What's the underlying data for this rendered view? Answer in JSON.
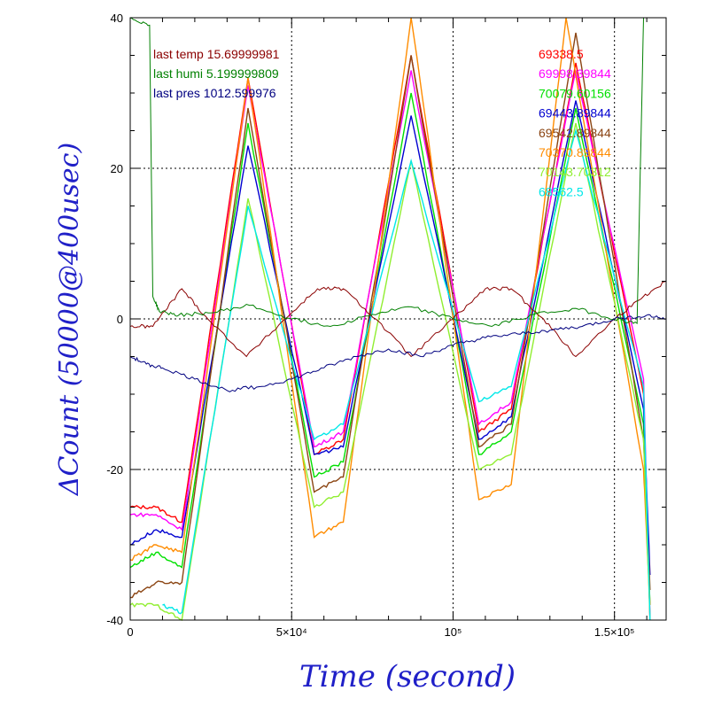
{
  "chart_data": {
    "type": "line",
    "xlabel": "Time (second)",
    "ylabel": "ΔCount (50000@400usec)",
    "xlim": [
      0,
      166000
    ],
    "ylim": [
      -40,
      40
    ],
    "grid": true,
    "x_ticks": [
      {
        "value": 0,
        "label": "0"
      },
      {
        "value": 50000,
        "label": "5×10⁴"
      },
      {
        "value": 100000,
        "label": "10⁵"
      },
      {
        "value": 150000,
        "label": "1.5×10⁵"
      }
    ],
    "y_ticks": [
      {
        "value": -40,
        "label": "-40"
      },
      {
        "value": -20,
        "label": "-20"
      },
      {
        "value": 0,
        "label": "0"
      },
      {
        "value": 20,
        "label": "20"
      },
      {
        "value": 40,
        "label": "40"
      }
    ],
    "annotations_left": [
      {
        "text": "last temp 15.69999981",
        "color": "#8b0000"
      },
      {
        "text": "last humi 5.199999809",
        "color": "#008000"
      },
      {
        "text": "last pres 1012.599976",
        "color": "#000080"
      }
    ],
    "series": [
      {
        "name": "69338.5",
        "color": "#ff0000",
        "points": [
          [
            0,
            -25
          ],
          [
            8000,
            -25
          ],
          [
            16000,
            -27
          ],
          [
            36500,
            32
          ],
          [
            57000,
            -18
          ],
          [
            66000,
            -16
          ],
          [
            87000,
            35
          ],
          [
            108000,
            -15
          ],
          [
            118000,
            -12
          ],
          [
            138000,
            34
          ],
          [
            159000,
            -10
          ],
          [
            161000,
            -40
          ]
        ]
      },
      {
        "name": "69998.39844",
        "color": "#ff00ff",
        "points": [
          [
            0,
            -26
          ],
          [
            8000,
            -26
          ],
          [
            16000,
            -28
          ],
          [
            36500,
            31
          ],
          [
            57000,
            -17
          ],
          [
            66000,
            -15
          ],
          [
            87000,
            33
          ],
          [
            108000,
            -14
          ],
          [
            118000,
            -11
          ],
          [
            138000,
            33
          ],
          [
            159000,
            -8
          ],
          [
            161000,
            -40
          ]
        ]
      },
      {
        "name": "70079.60156",
        "color": "#00e000",
        "points": [
          [
            0,
            -33
          ],
          [
            8000,
            -31
          ],
          [
            16000,
            -33
          ],
          [
            36500,
            26
          ],
          [
            57000,
            -21
          ],
          [
            66000,
            -19
          ],
          [
            87000,
            30
          ],
          [
            108000,
            -18
          ],
          [
            118000,
            -15
          ],
          [
            138000,
            28
          ],
          [
            159000,
            -14
          ],
          [
            161000,
            -38
          ]
        ]
      },
      {
        "name": "69443.89844",
        "color": "#0000d0",
        "points": [
          [
            0,
            -30
          ],
          [
            8000,
            -28
          ],
          [
            16000,
            -29
          ],
          [
            36500,
            23
          ],
          [
            57000,
            -18
          ],
          [
            66000,
            -17
          ],
          [
            87000,
            27
          ],
          [
            108000,
            -16
          ],
          [
            118000,
            -13
          ],
          [
            138000,
            29
          ],
          [
            159000,
            -12
          ],
          [
            161000,
            -34
          ]
        ]
      },
      {
        "name": "69542.89844",
        "color": "#8b4513",
        "points": [
          [
            0,
            -37
          ],
          [
            8000,
            -35
          ],
          [
            16000,
            -35
          ],
          [
            36500,
            28
          ],
          [
            57000,
            -23
          ],
          [
            66000,
            -21
          ],
          [
            87000,
            35
          ],
          [
            108000,
            -17
          ],
          [
            118000,
            -14
          ],
          [
            138000,
            38
          ],
          [
            159000,
            -16
          ],
          [
            161000,
            -36
          ]
        ]
      },
      {
        "name": "70370.89844",
        "color": "#ff8c00",
        "points": [
          [
            0,
            -32
          ],
          [
            8000,
            -30
          ],
          [
            16000,
            -31
          ],
          [
            36500,
            32
          ],
          [
            57000,
            -29
          ],
          [
            66000,
            -27
          ],
          [
            87000,
            40
          ],
          [
            108000,
            -24
          ],
          [
            118000,
            -22
          ],
          [
            135000,
            40
          ],
          [
            159000,
            -20
          ],
          [
            161000,
            -38
          ]
        ]
      },
      {
        "name": "70143.70312",
        "color": "#90ee30",
        "points": [
          [
            0,
            -38
          ],
          [
            8000,
            -38
          ],
          [
            16000,
            -40
          ],
          [
            36500,
            16
          ],
          [
            57000,
            -25
          ],
          [
            66000,
            -23
          ],
          [
            87000,
            21
          ],
          [
            108000,
            -20
          ],
          [
            118000,
            -18
          ],
          [
            138000,
            26
          ],
          [
            159000,
            -16
          ],
          [
            161000,
            -40
          ]
        ]
      },
      {
        "name": "68562.5",
        "color": "#00e8e8",
        "points": [
          [
            10000,
            -38
          ],
          [
            16000,
            -39
          ],
          [
            36500,
            15
          ],
          [
            57000,
            -16
          ],
          [
            66000,
            -14
          ],
          [
            87000,
            21
          ],
          [
            108000,
            -11
          ],
          [
            118000,
            -9
          ],
          [
            138000,
            25
          ],
          [
            159000,
            -9
          ],
          [
            161000,
            -40
          ]
        ]
      },
      {
        "name": "",
        "color": "#8b0000",
        "points": [
          [
            0,
            -1
          ],
          [
            7000,
            -1
          ],
          [
            16000,
            4
          ],
          [
            24000,
            0
          ],
          [
            36000,
            -5
          ],
          [
            48000,
            0
          ],
          [
            58000,
            4
          ],
          [
            66000,
            4
          ],
          [
            76000,
            0
          ],
          [
            87000,
            -5
          ],
          [
            100000,
            0
          ],
          [
            110000,
            4
          ],
          [
            118000,
            4
          ],
          [
            128000,
            0
          ],
          [
            138000,
            -5
          ],
          [
            150000,
            0
          ],
          [
            159000,
            3
          ],
          [
            166000,
            5
          ]
        ]
      },
      {
        "name": "",
        "color": "#008000",
        "points": [
          [
            0,
            40
          ],
          [
            6000,
            39
          ],
          [
            7000,
            3
          ],
          [
            9000,
            1
          ],
          [
            15000,
            0.5
          ],
          [
            25000,
            0.8
          ],
          [
            37000,
            1.8
          ],
          [
            50000,
            0
          ],
          [
            62000,
            -1
          ],
          [
            75000,
            0.6
          ],
          [
            87000,
            1.6
          ],
          [
            100000,
            0
          ],
          [
            112000,
            -1
          ],
          [
            125000,
            0.6
          ],
          [
            138000,
            1.4
          ],
          [
            150000,
            0
          ],
          [
            157000,
            -0.6
          ],
          [
            159000,
            40
          ]
        ]
      },
      {
        "name": "",
        "color": "#000080",
        "points": [
          [
            0,
            -5
          ],
          [
            5000,
            -6
          ],
          [
            10000,
            -6.5
          ],
          [
            20000,
            -8
          ],
          [
            30000,
            -9.5
          ],
          [
            40000,
            -9
          ],
          [
            50000,
            -8
          ],
          [
            60000,
            -6.5
          ],
          [
            70000,
            -5
          ],
          [
            80000,
            -4
          ],
          [
            90000,
            -5
          ],
          [
            100000,
            -3.5
          ],
          [
            110000,
            -2.5
          ],
          [
            120000,
            -2
          ],
          [
            130000,
            -1.5
          ],
          [
            140000,
            -1
          ],
          [
            150000,
            0
          ],
          [
            160000,
            0.5
          ],
          [
            166000,
            0
          ]
        ]
      }
    ]
  }
}
